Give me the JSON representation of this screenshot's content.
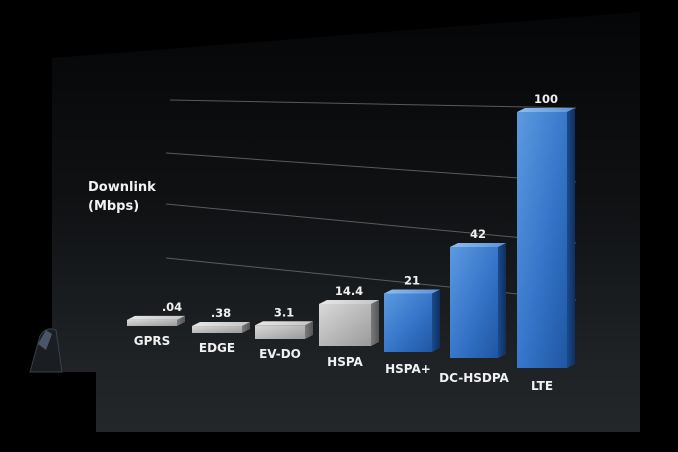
{
  "chart_data": {
    "type": "bar",
    "title": "",
    "ylabel": [
      "Downlink",
      "(Mbps)"
    ],
    "xlabel": "",
    "categories": [
      "GPRS",
      "EDGE",
      "EV-DO",
      "HSPA",
      "HSPA+",
      "DC-HSDPA",
      "LTE"
    ],
    "values": [
      0.04,
      0.38,
      3.1,
      14.4,
      21,
      42,
      100
    ],
    "value_labels": [
      ".04",
      ".38",
      "3.1",
      "14.4",
      "21",
      "42",
      "100"
    ],
    "ylim": [
      0,
      100
    ],
    "grid": true,
    "legend": "none",
    "colors": {
      "gray_bar": "#b9b9b9",
      "blue_bar": "#2f6fc4",
      "background": "#000000"
    }
  }
}
